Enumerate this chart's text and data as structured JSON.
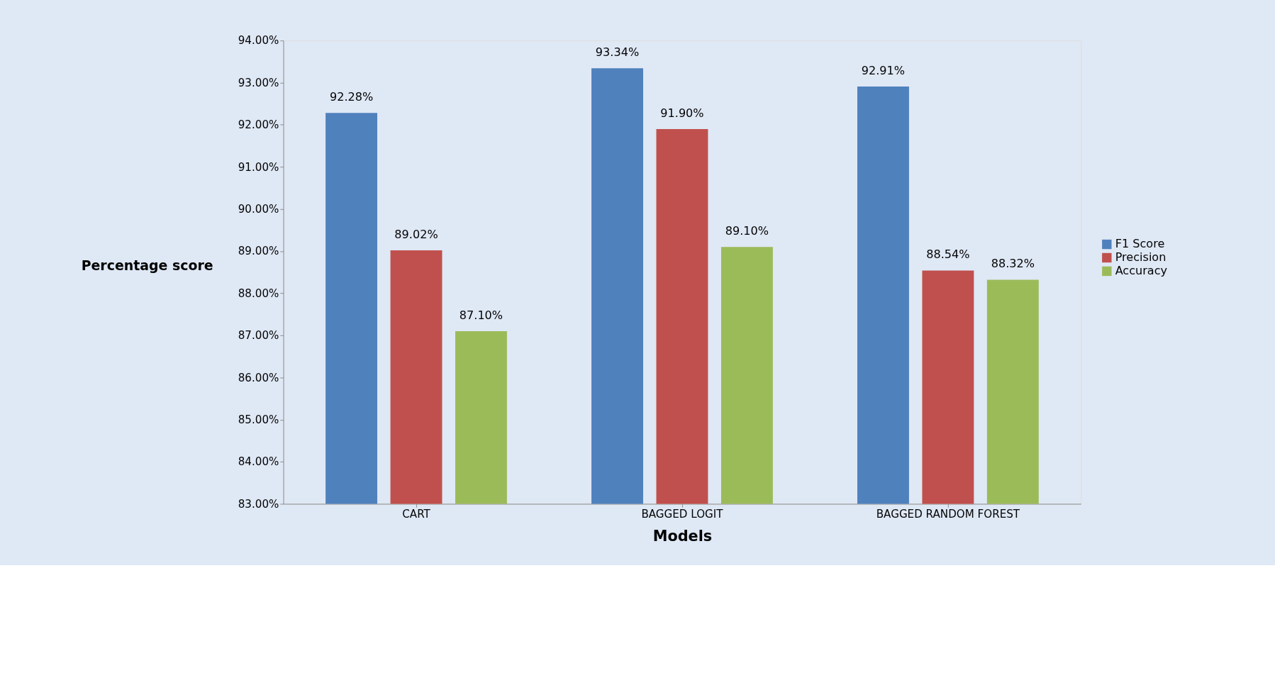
{
  "chart_data": {
    "type": "bar",
    "xlabel": "Models",
    "ylabel": "Percentage score",
    "categories": [
      "CART",
      "BAGGED LOGIT",
      "BAGGED RANDOM FOREST"
    ],
    "series": [
      {
        "name": "F1 Score",
        "color": "#4f81bd",
        "values": [
          92.28,
          93.34,
          92.91
        ],
        "value_labels": [
          "92.28%",
          "93.34%",
          "92.91%"
        ]
      },
      {
        "name": "Precision",
        "color": "#c0504d",
        "values": [
          89.02,
          91.9,
          88.54
        ],
        "value_labels": [
          "89.02%",
          "91.90%",
          "88.54%"
        ]
      },
      {
        "name": "Accuracy",
        "color": "#9bbb59",
        "values": [
          87.1,
          89.1,
          88.32
        ],
        "value_labels": [
          "87.10%",
          "89.10%",
          "88.32%"
        ]
      }
    ],
    "ylim": [
      83,
      94
    ],
    "yticks": [
      {
        "value": 83,
        "label": "83.00%"
      },
      {
        "value": 84,
        "label": "84.00%"
      },
      {
        "value": 85,
        "label": "85.00%"
      },
      {
        "value": 86,
        "label": "86.00%"
      },
      {
        "value": 87,
        "label": "87.00%"
      },
      {
        "value": 88,
        "label": "88.00%"
      },
      {
        "value": 89,
        "label": "89.00%"
      },
      {
        "value": 90,
        "label": "90.00%"
      },
      {
        "value": 91,
        "label": "91.00%"
      },
      {
        "value": 92,
        "label": "92.00%"
      },
      {
        "value": 93,
        "label": "93.00%"
      },
      {
        "value": 94,
        "label": "94.00%"
      }
    ],
    "legend": "right",
    "grid": false
  }
}
